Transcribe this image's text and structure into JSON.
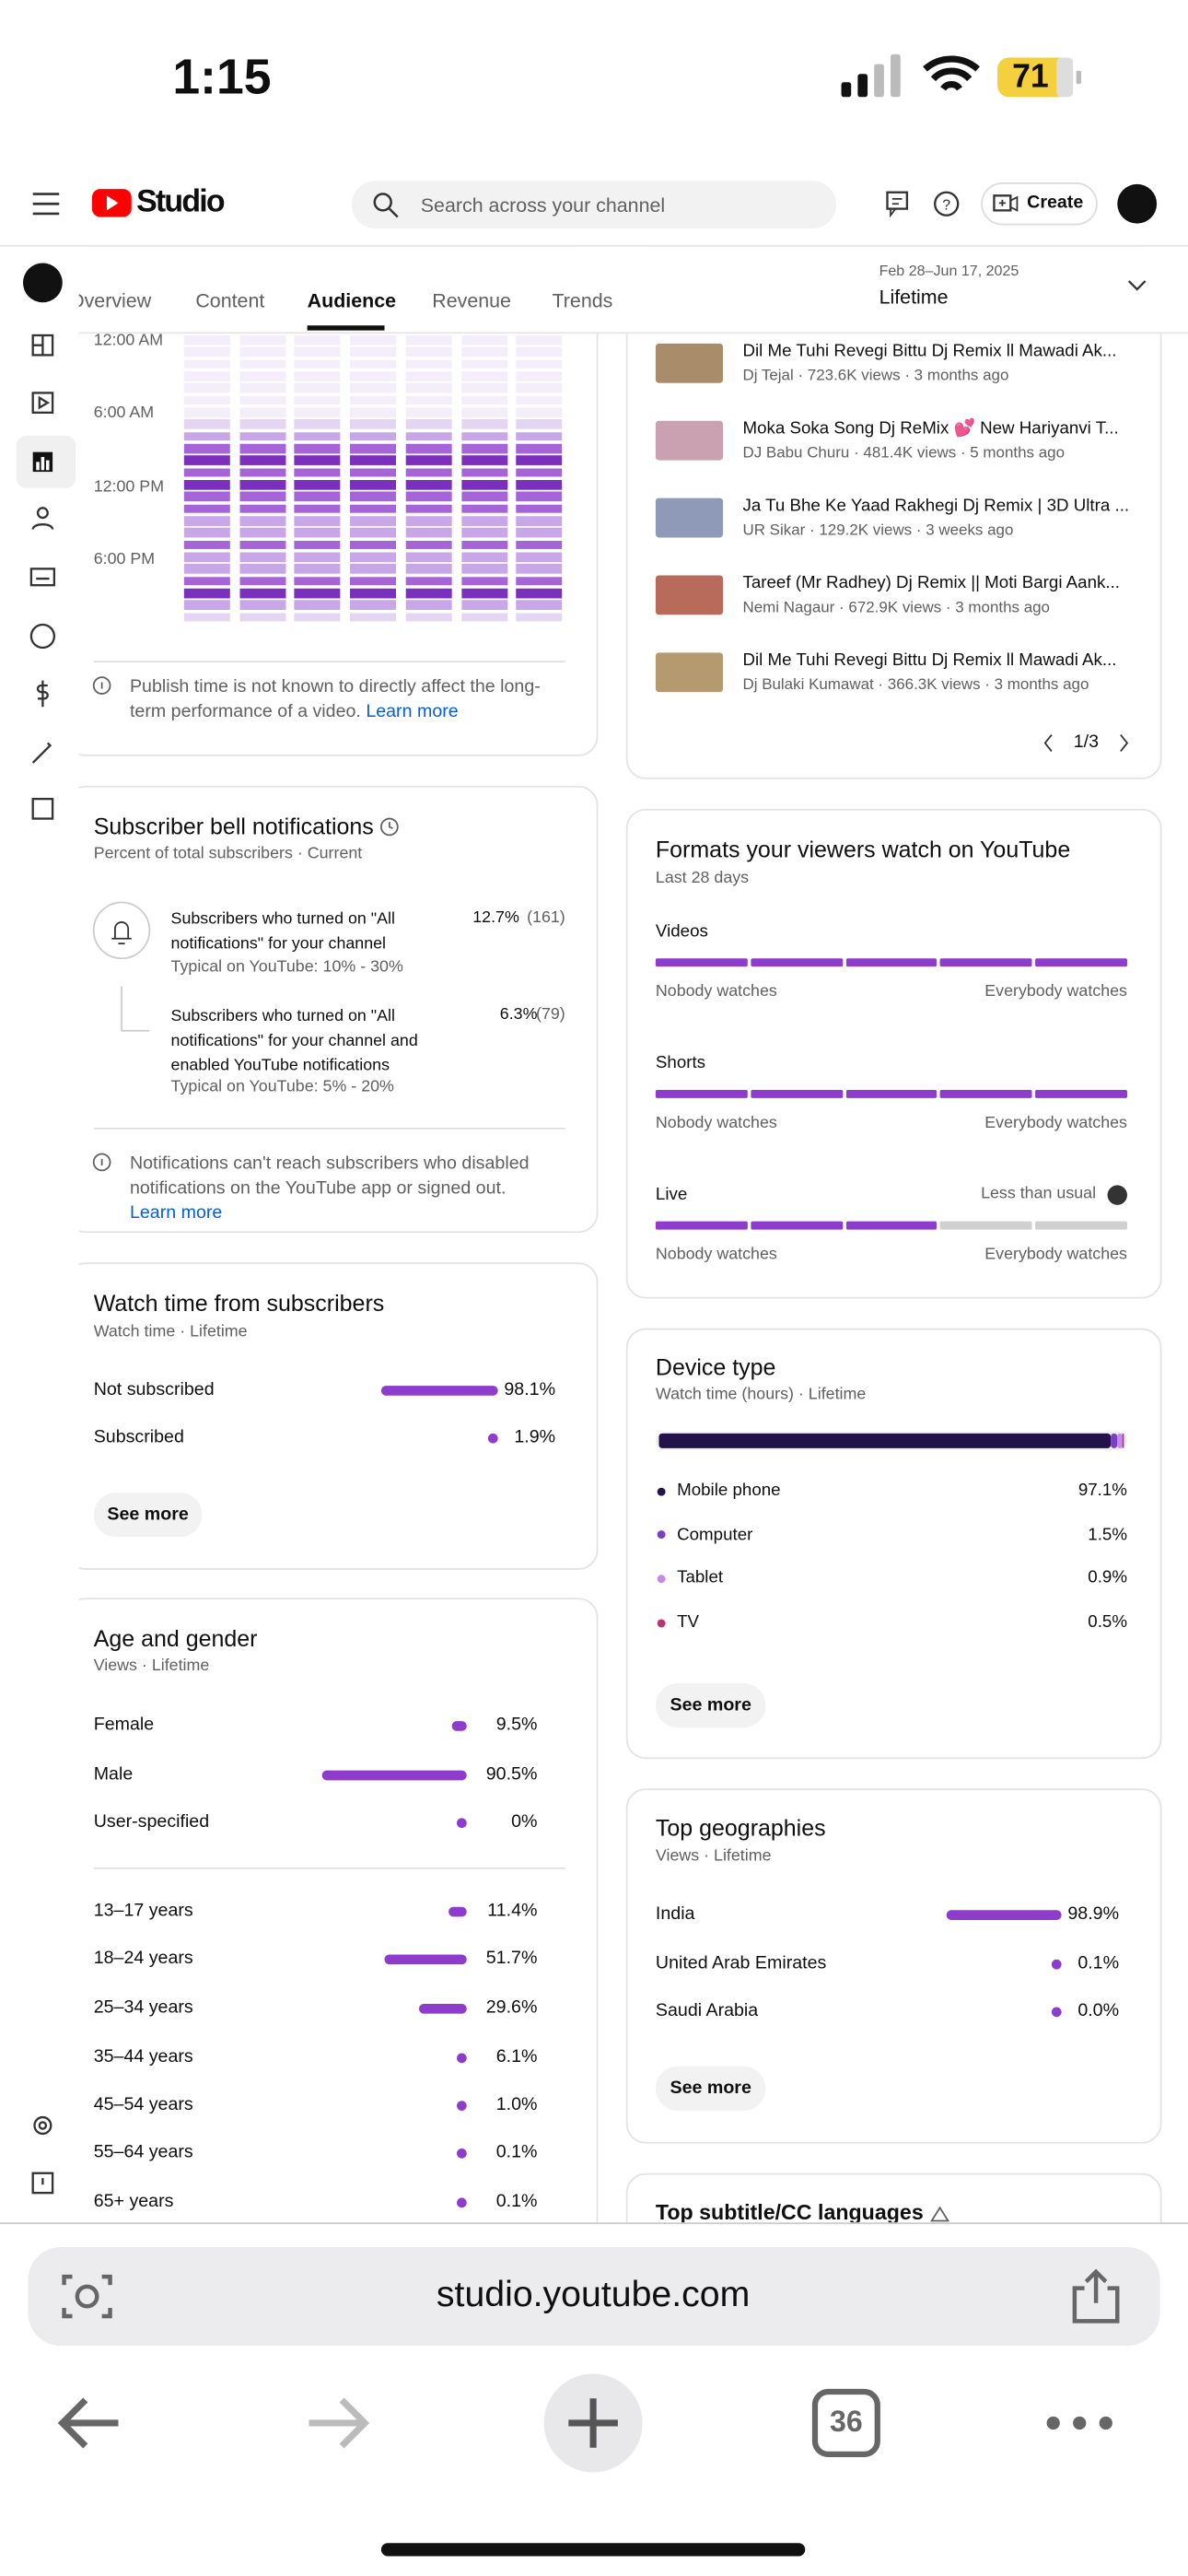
{
  "status_bar": {
    "time": "1:15",
    "battery": "71"
  },
  "header": {
    "brand": "Studio",
    "search_placeholder": "Search across your channel",
    "create": "Create"
  },
  "tabs": {
    "items": [
      "Overview",
      "Content",
      "Audience",
      "Revenue",
      "Trends"
    ],
    "active": 2,
    "date_range": "Feb 28–Jun 17, 2025",
    "period": "Lifetime"
  },
  "publish_heatmap": {
    "time_labels": [
      "12:00 AM",
      "6:00 AM",
      "12:00 PM",
      "6:00 PM"
    ],
    "row_levels": [
      1,
      1,
      1,
      1,
      1,
      1,
      1,
      2,
      3,
      4,
      5,
      4,
      5,
      4,
      4,
      3,
      3,
      4,
      3,
      3,
      4,
      5,
      3,
      2
    ],
    "note": "Publish time is not known to directly affect the long-term performance of a video.",
    "learn_more": "Learn more"
  },
  "bell": {
    "title": "Subscriber bell notifications",
    "subtitle": "Percent of total subscribers · Current",
    "rows": [
      {
        "text": "Subscribers who turned on \"All notifications\" for your channel",
        "typical": "Typical on YouTube: 10% - 30%",
        "percent": "12.7%",
        "count": "(161)"
      },
      {
        "text": "Subscribers who turned on \"All notifications\" for your channel and enabled YouTube notifications",
        "typical": "Typical on YouTube: 5% - 20%",
        "percent": "6.3%",
        "count": "(79)"
      }
    ],
    "note": "Notifications can't reach subscribers who disabled notifications on the YouTube app or signed out.",
    "learn_more": "Learn more"
  },
  "watch_subs": {
    "title": "Watch time from subscribers",
    "subtitle": "Watch time · Lifetime",
    "items": [
      {
        "label": "Not subscribed",
        "value": 98.1,
        "value_label": "98.1%"
      },
      {
        "label": "Subscribed",
        "value": 1.9,
        "value_label": "1.9%"
      }
    ],
    "button": "See more"
  },
  "age_gender": {
    "title": "Age and gender",
    "subtitle": "Views · Lifetime",
    "gender": [
      {
        "label": "Female",
        "value": 9.5,
        "value_label": "9.5%"
      },
      {
        "label": "Male",
        "value": 90.5,
        "value_label": "90.5%"
      },
      {
        "label": "User-specified",
        "value": 0,
        "value_label": "0%"
      }
    ],
    "ages": [
      {
        "label": "13–17 years",
        "value": 11.4,
        "value_label": "11.4%"
      },
      {
        "label": "18–24 years",
        "value": 51.7,
        "value_label": "51.7%"
      },
      {
        "label": "25–34 years",
        "value": 29.6,
        "value_label": "29.6%"
      },
      {
        "label": "35–44 years",
        "value": 6.1,
        "value_label": "6.1%"
      },
      {
        "label": "45–54 years",
        "value": 1.0,
        "value_label": "1.0%"
      },
      {
        "label": "55–64 years",
        "value": 0.1,
        "value_label": "0.1%"
      },
      {
        "label": "65+ years",
        "value": 0.1,
        "value_label": "0.1%"
      }
    ]
  },
  "videos": {
    "items": [
      {
        "title": "Dil Me Tuhi Revegi Bittu Dj Remix ll Mawadi Ak...",
        "meta": "Dj Tejal · 723.6K views · 3 months ago"
      },
      {
        "title": "Moka Soka Song Dj ReMix 💕 New Hariyanvi T...",
        "meta": "DJ Babu Churu · 481.4K views · 5 months ago"
      },
      {
        "title": "Ja Tu Bhe Ke Yaad Rakhegi Dj Remix | 3D Ultra ...",
        "meta": "UR Sikar · 129.2K views · 3 weeks ago"
      },
      {
        "title": "Tareef (Mr Radhey) Dj Remix || Moti Bargi Aank...",
        "meta": "Nemi Nagaur · 672.9K views · 3 months ago"
      },
      {
        "title": "Dil Me Tuhi Revegi Bittu Dj Remix ll Mawadi Ak...",
        "meta": "Dj Bulaki Kumawat · 366.3K views · 3 months ago"
      }
    ],
    "page": "1/3"
  },
  "formats": {
    "title": "Formats your viewers watch on YouTube",
    "subtitle": "Last 28 days",
    "segments": 5,
    "items": [
      {
        "label": "Videos",
        "filled": 5,
        "low": "Nobody watches",
        "high": "Everybody watches"
      },
      {
        "label": "Shorts",
        "filled": 5,
        "low": "Nobody watches",
        "high": "Everybody watches"
      },
      {
        "label": "Live",
        "filled": 3,
        "trend": "Less than usual",
        "low": "Nobody watches",
        "high": "Everybody watches"
      }
    ]
  },
  "device": {
    "title": "Device type",
    "subtitle": "Watch time (hours) · Lifetime",
    "items": [
      {
        "label": "Mobile phone",
        "value": 97.1,
        "value_label": "97.1%",
        "color": "#24134a"
      },
      {
        "label": "Computer",
        "value": 1.5,
        "value_label": "1.5%",
        "color": "#7b3fc4"
      },
      {
        "label": "Tablet",
        "value": 0.9,
        "value_label": "0.9%",
        "color": "#c58be8"
      },
      {
        "label": "TV",
        "value": 0.5,
        "value_label": "0.5%",
        "color": "#b8327a"
      }
    ],
    "button": "See more"
  },
  "geographies": {
    "title": "Top geographies",
    "subtitle": "Views · Lifetime",
    "items": [
      {
        "label": "India",
        "value": 98.9,
        "value_label": "98.9%"
      },
      {
        "label": "United Arab Emirates",
        "value": 0.1,
        "value_label": "0.1%"
      },
      {
        "label": "Saudi Arabia",
        "value": 0.0,
        "value_label": "0.0%"
      }
    ],
    "button": "See more"
  },
  "subtitles": {
    "title": "Top subtitle/CC languages"
  },
  "browser": {
    "url": "studio.youtube.com",
    "tab_count": "36"
  }
}
